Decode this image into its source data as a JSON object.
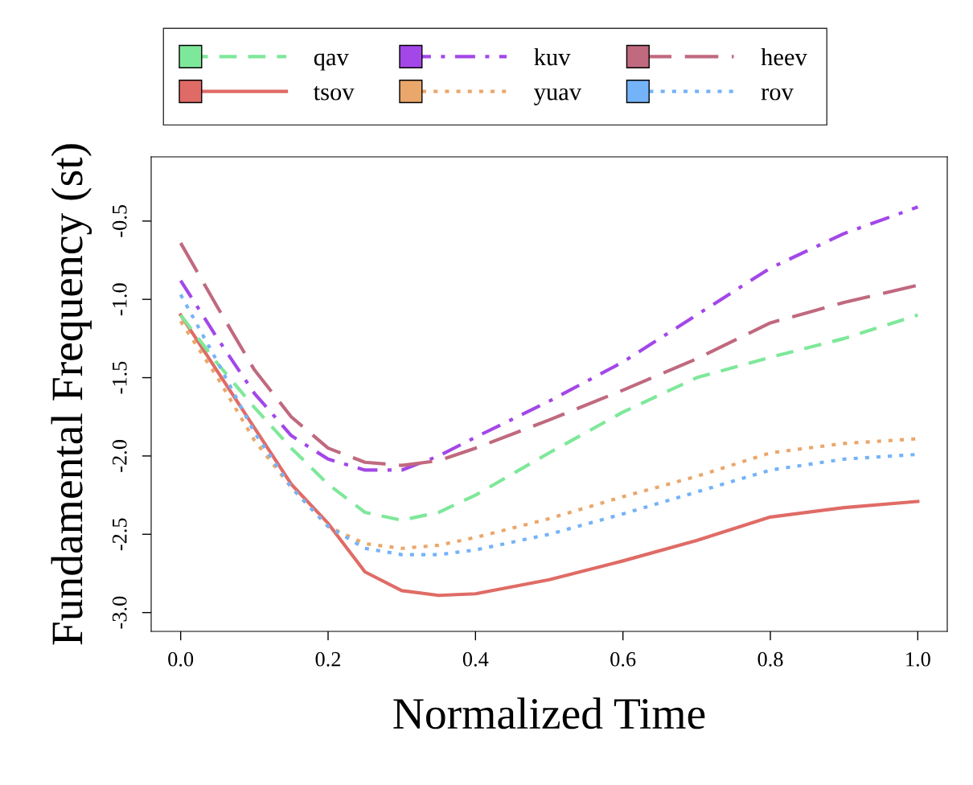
{
  "chart_data": {
    "type": "line",
    "xlabel": "Normalized Time",
    "ylabel": "Fundamental Frequency (st)",
    "x": [
      0,
      0.05,
      0.1,
      0.15,
      0.2,
      0.25,
      0.3,
      0.35,
      0.4,
      0.5,
      0.6,
      0.7,
      0.8,
      0.9,
      1.0
    ],
    "series": [
      {
        "name": "qav",
        "color": "#7ee89a",
        "line_style": "dashed",
        "values": [
          -1.1,
          -1.41,
          -1.69,
          -1.95,
          -2.18,
          -2.36,
          -2.41,
          -2.36,
          -2.25,
          -1.98,
          -1.72,
          -1.5,
          -1.37,
          -1.25,
          -1.1
        ]
      },
      {
        "name": "tsov",
        "color": "#e06b66",
        "line_style": "solid",
        "values": [
          -1.1,
          -1.46,
          -1.82,
          -2.18,
          -2.43,
          -2.74,
          -2.86,
          -2.89,
          -2.88,
          -2.79,
          -2.67,
          -2.54,
          -2.39,
          -2.33,
          -2.29
        ]
      },
      {
        "name": "kuv",
        "color": "#a347e8",
        "line_style": "dashdot",
        "values": [
          -0.88,
          -1.25,
          -1.6,
          -1.87,
          -2.02,
          -2.09,
          -2.09,
          -2.0,
          -1.88,
          -1.65,
          -1.4,
          -1.1,
          -0.8,
          -0.58,
          -0.41
        ]
      },
      {
        "name": "yuav",
        "color": "#eaa76b",
        "line_style": "dotted",
        "values": [
          -1.14,
          -1.5,
          -1.9,
          -2.2,
          -2.45,
          -2.56,
          -2.59,
          -2.57,
          -2.52,
          -2.4,
          -2.26,
          -2.13,
          -1.98,
          -1.92,
          -1.89
        ]
      },
      {
        "name": "heev",
        "color": "#c0697f",
        "line_style": "longdash",
        "values": [
          -0.64,
          -1.05,
          -1.45,
          -1.75,
          -1.95,
          -2.04,
          -2.06,
          -2.03,
          -1.95,
          -1.77,
          -1.58,
          -1.38,
          -1.15,
          -1.02,
          -0.91
        ]
      },
      {
        "name": "rov",
        "color": "#74b3f8",
        "line_style": "dotted",
        "values": [
          -0.97,
          -1.4,
          -1.85,
          -2.2,
          -2.45,
          -2.59,
          -2.63,
          -2.63,
          -2.6,
          -2.5,
          -2.37,
          -2.23,
          -2.09,
          -2.02,
          -1.99
        ]
      }
    ],
    "xlim": [
      -0.04,
      1.04
    ],
    "xticks": [
      {
        "value": 0,
        "label": "0.0"
      },
      0.2,
      0.4,
      0.6,
      0.8,
      {
        "value": 1,
        "label": "1.0"
      }
    ],
    "ylim": [
      -3.12,
      -0.09
    ],
    "yticks": [
      {
        "value": -3,
        "label": "-3.0"
      },
      -2.5,
      {
        "value": -2,
        "label": "-2.0"
      },
      -1.5,
      {
        "value": -1,
        "label": "-1.0"
      },
      -0.5
    ],
    "grid": false,
    "legend": "top",
    "marker": "none"
  }
}
